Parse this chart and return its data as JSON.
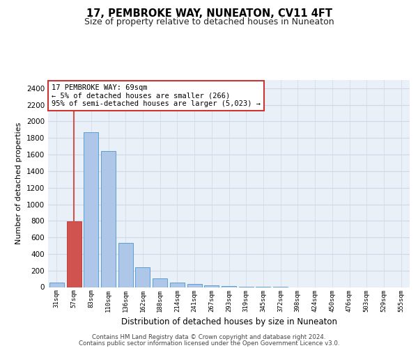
{
  "title": "17, PEMBROKE WAY, NUNEATON, CV11 4FT",
  "subtitle": "Size of property relative to detached houses in Nuneaton",
  "xlabel": "Distribution of detached houses by size in Nuneaton",
  "ylabel": "Number of detached properties",
  "categories": [
    "31sqm",
    "57sqm",
    "83sqm",
    "110sqm",
    "136sqm",
    "162sqm",
    "188sqm",
    "214sqm",
    "241sqm",
    "267sqm",
    "293sqm",
    "319sqm",
    "345sqm",
    "372sqm",
    "398sqm",
    "424sqm",
    "450sqm",
    "476sqm",
    "503sqm",
    "529sqm",
    "555sqm"
  ],
  "values": [
    55,
    790,
    1870,
    1640,
    530,
    238,
    108,
    58,
    35,
    20,
    10,
    5,
    2,
    1,
    0,
    0,
    0,
    0,
    0,
    0,
    0
  ],
  "bar_color": "#aec6e8",
  "bar_edgecolor": "#5a9fd4",
  "highlight_bar_index": 1,
  "highlight_bar_color": "#d0534f",
  "highlight_bar_edgecolor": "#c04040",
  "vline_color": "#d0534f",
  "annotation_text": "17 PEMBROKE WAY: 69sqm\n← 5% of detached houses are smaller (266)\n95% of semi-detached houses are larger (5,023) →",
  "annotation_box_facecolor": "#ffffff",
  "annotation_box_edgecolor": "#cc3333",
  "ylim": [
    0,
    2500
  ],
  "yticks": [
    0,
    200,
    400,
    600,
    800,
    1000,
    1200,
    1400,
    1600,
    1800,
    2000,
    2200,
    2400
  ],
  "grid_color": "#d0d8e8",
  "background_color": "#eaf0f8",
  "footer_line1": "Contains HM Land Registry data © Crown copyright and database right 2024.",
  "footer_line2": "Contains public sector information licensed under the Open Government Licence v3.0."
}
